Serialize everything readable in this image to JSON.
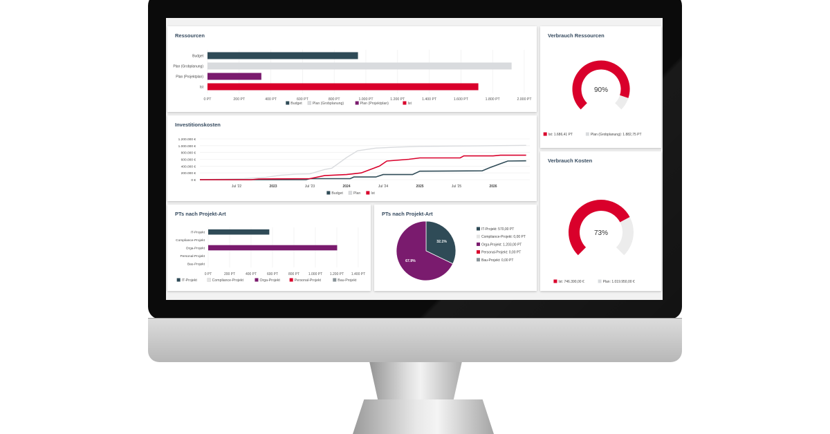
{
  "colors": {
    "budget": "#2f4b57",
    "plan": "#d9dbde",
    "projektplan": "#7a1b6e",
    "ist": "#d9002b",
    "compliance": "#e4e4e4",
    "bau": "#8a9499",
    "title": "#34495e"
  },
  "ressourcen": {
    "title": "Ressourcen",
    "chart_data": {
      "type": "bar",
      "orientation": "horizontal",
      "categories": [
        "Budget",
        "Plan (Grobplanung)",
        "Plan (Projektplan)",
        "Ist"
      ],
      "values": [
        950,
        1920,
        340,
        1710
      ],
      "xlim": [
        0,
        2000
      ],
      "xticks": [
        "0 PT",
        "200 PT",
        "400 PT",
        "600 PT",
        "800 PT",
        "1.000 PT",
        "1.200 PT",
        "1.400 PT",
        "1.600 PT",
        "1.800 PT",
        "2.000 PT"
      ],
      "legend": [
        "Budget",
        "Plan (Grobplanung)",
        "Plan (Projektplan)",
        "Ist"
      ],
      "legend_position": "bottom",
      "grid": true
    }
  },
  "investitionskosten": {
    "title": "Investitionskosten",
    "chart_data": {
      "type": "line",
      "yticks": [
        "1.200.000 €",
        "1.000.000 €",
        "800.000 €",
        "600.000 €",
        "400.000 €",
        "200.000 €",
        "0 €"
      ],
      "ylim": [
        0,
        1200000
      ],
      "xticks": [
        "Jul '22",
        "2023",
        "Jul '23",
        "2024",
        "Jul '24",
        "2025",
        "Jul '25",
        "2026"
      ],
      "xlim": [
        2022.0,
        2026.5
      ],
      "x_tick_values": [
        2022.5,
        2023.0,
        2023.5,
        2024.0,
        2024.5,
        2025.0,
        2025.5,
        2026.0
      ],
      "series": [
        {
          "name": "Budget",
          "points": [
            [
              2022.0,
              0
            ],
            [
              2023.45,
              0
            ],
            [
              2023.5,
              30000
            ],
            [
              2024.05,
              30000
            ],
            [
              2024.1,
              80000
            ],
            [
              2024.4,
              80000
            ],
            [
              2024.5,
              150000
            ],
            [
              2024.9,
              150000
            ],
            [
              2025.0,
              250000
            ],
            [
              2025.85,
              260000
            ],
            [
              2025.95,
              350000
            ],
            [
              2026.1,
              470000
            ],
            [
              2026.2,
              550000
            ],
            [
              2026.45,
              555000
            ]
          ]
        },
        {
          "name": "Plan",
          "points": [
            [
              2022.0,
              0
            ],
            [
              2022.6,
              30000
            ],
            [
              2022.9,
              70000
            ],
            [
              2023.1,
              130000
            ],
            [
              2023.3,
              160000
            ],
            [
              2023.5,
              170000
            ],
            [
              2023.7,
              300000
            ],
            [
              2023.8,
              340000
            ],
            [
              2024.0,
              650000
            ],
            [
              2024.15,
              850000
            ],
            [
              2024.4,
              930000
            ],
            [
              2024.7,
              960000
            ],
            [
              2025.0,
              980000
            ],
            [
              2025.5,
              990000
            ],
            [
              2025.8,
              995000
            ],
            [
              2026.0,
              1000000
            ],
            [
              2026.45,
              1010000
            ]
          ]
        },
        {
          "name": "Ist",
          "points": [
            [
              2022.0,
              0
            ],
            [
              2022.7,
              0
            ],
            [
              2022.8,
              20000
            ],
            [
              2023.5,
              30000
            ],
            [
              2023.7,
              120000
            ],
            [
              2024.0,
              150000
            ],
            [
              2024.2,
              200000
            ],
            [
              2024.45,
              400000
            ],
            [
              2024.55,
              550000
            ],
            [
              2024.85,
              600000
            ],
            [
              2025.0,
              640000
            ],
            [
              2025.55,
              640000
            ],
            [
              2025.6,
              700000
            ],
            [
              2026.0,
              700000
            ],
            [
              2026.1,
              720000
            ],
            [
              2026.45,
              720000
            ]
          ]
        }
      ],
      "legend": [
        "Budget",
        "Plan",
        "Ist"
      ],
      "legend_position": "bottom",
      "grid": true
    }
  },
  "pts_bar": {
    "title": "PTs nach Projekt-Art",
    "chart_data": {
      "type": "bar",
      "orientation": "horizontal",
      "categories": [
        "IT-Projekt",
        "Compliance-Projekt",
        "Orga-Projekt",
        "Personal-Projekt",
        "Bau-Projekt"
      ],
      "values": [
        570,
        0,
        1203,
        0,
        0
      ],
      "xlim": [
        0,
        1400
      ],
      "xticks": [
        "0 PT",
        "200 PT",
        "400 PT",
        "600 PT",
        "800 PT",
        "1.000 PT",
        "1.200 PT",
        "1.400 PT"
      ],
      "legend": [
        "IT-Projekt",
        "Compliance-Projekt",
        "Orga-Projekt",
        "Personal-Projekt",
        "Bau-Projekt"
      ],
      "legend_position": "bottom",
      "grid": true
    }
  },
  "pts_pie": {
    "title": "PTs nach Projekt-Art",
    "chart_data": {
      "type": "pie",
      "slices": [
        {
          "name": "IT-Projekt",
          "value": 570,
          "label": "32.1%"
        },
        {
          "name": "Orga-Projekt",
          "value": 1203,
          "label": "67.9%"
        }
      ],
      "legend": [
        "IT-Projekt: 570,00 PT",
        "Compliance-Projekt: 0,00 PT",
        "Orga-Projekt: 1.203,00 PT",
        "Personal-Projekt: 0,00 PT",
        "Bau-Projekt: 0,00 PT"
      ],
      "legend_position": "right"
    }
  },
  "verbrauch_ressourcen": {
    "title": "Verbrauch Ressourcen",
    "chart_data": {
      "type": "gauge",
      "value": 0.9,
      "label": "90%",
      "legend": [
        "Ist: 1.686,41 PT",
        "Plan (Grobplanung): 1.882,75 PT"
      ]
    }
  },
  "verbrauch_kosten": {
    "title": "Verbrauch Kosten",
    "chart_data": {
      "type": "gauge",
      "value": 0.73,
      "label": "73%",
      "legend": [
        "Ist: 746.390,00 €",
        "Plan: 1.019.950,00 €"
      ]
    }
  }
}
